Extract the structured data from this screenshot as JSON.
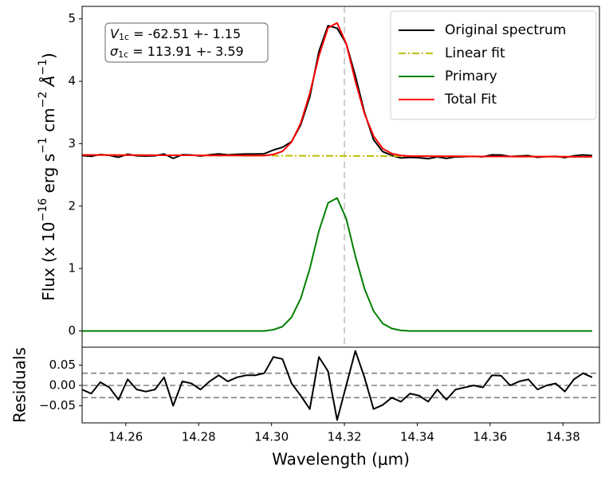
{
  "chart_data": [
    {
      "type": "line",
      "ylabel_parts": [
        {
          "text": "Flux (x 10"
        },
        {
          "text": "−16",
          "sup": true
        },
        {
          "text": " erg s"
        },
        {
          "text": "−1",
          "sup": true
        },
        {
          "text": " cm"
        },
        {
          "text": "−2",
          "sup": true
        },
        {
          "text": " Å",
          "italic": true
        },
        {
          "text": "−1",
          "sup": true
        },
        {
          "text": ")"
        }
      ],
      "annotations": [
        {
          "symbol": "V",
          "subscript": "1c",
          "text": " = -62.51 +- 1.15"
        },
        {
          "symbol": "σ",
          "subscript": "1c",
          "text": " = 113.91 +- 3.59"
        }
      ],
      "legend": "upper right",
      "xlim": [
        14.248,
        14.39
      ],
      "ylim": [
        -0.26,
        5.2
      ],
      "yticks": [
        0,
        1,
        2,
        3,
        4,
        5
      ],
      "vline": 14.32,
      "x": [
        14.248,
        14.2505,
        14.253,
        14.2555,
        14.258,
        14.2605,
        14.263,
        14.2655,
        14.268,
        14.2705,
        14.273,
        14.2755,
        14.278,
        14.2805,
        14.283,
        14.2855,
        14.288,
        14.2905,
        14.293,
        14.2955,
        14.298,
        14.3005,
        14.303,
        14.3055,
        14.308,
        14.3105,
        14.313,
        14.3155,
        14.318,
        14.3205,
        14.323,
        14.3255,
        14.328,
        14.3305,
        14.333,
        14.3355,
        14.338,
        14.3405,
        14.343,
        14.3455,
        14.348,
        14.3505,
        14.353,
        14.3555,
        14.358,
        14.3605,
        14.363,
        14.3655,
        14.368,
        14.3705,
        14.373,
        14.3755,
        14.378,
        14.3805,
        14.383,
        14.3855,
        14.388
      ],
      "series": [
        {
          "name": "Original spectrum",
          "color": "#000000",
          "dash": "solid",
          "values": [
            2.81,
            2.799,
            2.827,
            2.813,
            2.783,
            2.832,
            2.807,
            2.801,
            2.806,
            2.835,
            2.765,
            2.824,
            2.819,
            2.803,
            2.822,
            2.837,
            2.821,
            2.831,
            2.835,
            2.835,
            2.839,
            2.899,
            2.943,
            3.033,
            3.302,
            3.749,
            4.476,
            4.891,
            4.85,
            4.604,
            4.089,
            3.503,
            3.065,
            2.874,
            2.812,
            2.771,
            2.781,
            2.775,
            2.76,
            2.789,
            2.764,
            2.788,
            2.792,
            2.797,
            2.791,
            2.821,
            2.819,
            2.795,
            2.804,
            2.809,
            2.783,
            2.793,
            2.797,
            2.777,
            2.806,
            2.821,
            2.81
          ]
        },
        {
          "name": "Linear fit",
          "color": "#bfbf00",
          "dash": "dashdot",
          "values": [
            2.82,
            2.819,
            2.819,
            2.818,
            2.818,
            2.817,
            2.817,
            2.816,
            2.816,
            2.815,
            2.815,
            2.814,
            2.814,
            2.813,
            2.812,
            2.812,
            2.811,
            2.811,
            2.81,
            2.81,
            2.809,
            2.809,
            2.808,
            2.808,
            2.807,
            2.807,
            2.806,
            2.806,
            2.805,
            2.804,
            2.804,
            2.803,
            2.803,
            2.802,
            2.802,
            2.801,
            2.801,
            2.8,
            2.8,
            2.799,
            2.799,
            2.798,
            2.797,
            2.797,
            2.796,
            2.796,
            2.795,
            2.795,
            2.794,
            2.794,
            2.793,
            2.793,
            2.792,
            2.792,
            2.791,
            2.791,
            2.79
          ]
        },
        {
          "name": "Primary",
          "color": "#008000",
          "dash": "solid",
          "values": [
            0,
            0,
            0,
            0,
            0,
            0,
            0,
            0,
            0,
            0,
            0,
            0,
            0,
            0,
            0,
            0,
            0,
            0,
            0,
            0,
            0,
            0.02,
            0.07,
            0.22,
            0.52,
            1.0,
            1.6,
            2.05,
            2.13,
            1.8,
            1.2,
            0.68,
            0.32,
            0.12,
            0.04,
            0.01,
            0,
            0,
            0,
            0,
            0,
            0,
            0,
            0,
            0,
            0,
            0,
            0,
            0,
            0,
            0,
            0,
            0,
            0,
            0,
            0,
            0
          ]
        },
        {
          "name": "Total Fit",
          "color": "#ff0000",
          "dash": "solid",
          "values": [
            2.82,
            2.819,
            2.819,
            2.818,
            2.818,
            2.817,
            2.817,
            2.816,
            2.816,
            2.815,
            2.815,
            2.814,
            2.814,
            2.813,
            2.812,
            2.812,
            2.811,
            2.811,
            2.81,
            2.81,
            2.809,
            2.829,
            2.878,
            3.028,
            3.327,
            3.807,
            4.406,
            4.856,
            4.935,
            4.604,
            4.004,
            3.483,
            3.123,
            2.922,
            2.842,
            2.811,
            2.801,
            2.8,
            2.8,
            2.799,
            2.799,
            2.798,
            2.797,
            2.797,
            2.796,
            2.796,
            2.795,
            2.795,
            2.794,
            2.794,
            2.793,
            2.793,
            2.792,
            2.792,
            2.791,
            2.791,
            2.79
          ]
        }
      ]
    },
    {
      "type": "line",
      "xlabel": "Wavelength (μm)",
      "ylabel": "Residuals",
      "xlim": [
        14.248,
        14.39
      ],
      "ylim": [
        -0.092,
        0.094
      ],
      "xticks": [
        14.26,
        14.28,
        {
          "value": 14.3,
          "label": "14.30"
        },
        14.32,
        14.34,
        14.36,
        14.38
      ],
      "yticks": [
        {
          "value": 0.05,
          "label": "0.05"
        },
        {
          "value": 0,
          "label": "0.00"
        },
        {
          "value": -0.05,
          "label": "−0.05"
        }
      ],
      "hlines": [
        0.03,
        0,
        -0.03
      ],
      "x": [
        14.248,
        14.2505,
        14.253,
        14.2555,
        14.258,
        14.2605,
        14.263,
        14.2655,
        14.268,
        14.2705,
        14.273,
        14.2755,
        14.278,
        14.2805,
        14.283,
        14.2855,
        14.288,
        14.2905,
        14.293,
        14.2955,
        14.298,
        14.3005,
        14.303,
        14.3055,
        14.308,
        14.3105,
        14.313,
        14.3155,
        14.318,
        14.3205,
        14.323,
        14.3255,
        14.328,
        14.3305,
        14.333,
        14.3355,
        14.338,
        14.3405,
        14.343,
        14.3455,
        14.348,
        14.3505,
        14.353,
        14.3555,
        14.358,
        14.3605,
        14.363,
        14.3655,
        14.368,
        14.3705,
        14.373,
        14.3755,
        14.378,
        14.3805,
        14.383,
        14.3855,
        14.388
      ],
      "series": [
        {
          "color": "#000000",
          "values": [
            -0.01,
            -0.02,
            0.008,
            -0.005,
            -0.035,
            0.015,
            -0.01,
            -0.015,
            -0.01,
            0.02,
            -0.05,
            0.01,
            0.005,
            -0.01,
            0.01,
            0.025,
            0.01,
            0.02,
            0.025,
            0.025,
            0.03,
            0.07,
            0.065,
            0.005,
            -0.025,
            -0.058,
            0.07,
            0.035,
            -0.085,
            0.0,
            0.085,
            0.02,
            -0.058,
            -0.048,
            -0.03,
            -0.04,
            -0.02,
            -0.025,
            -0.04,
            -0.01,
            -0.035,
            -0.01,
            -0.005,
            0.0,
            -0.005,
            0.025,
            0.024,
            0.0,
            0.01,
            0.015,
            -0.01,
            0.0,
            0.005,
            -0.015,
            0.015,
            0.03,
            0.02
          ]
        }
      ]
    }
  ]
}
